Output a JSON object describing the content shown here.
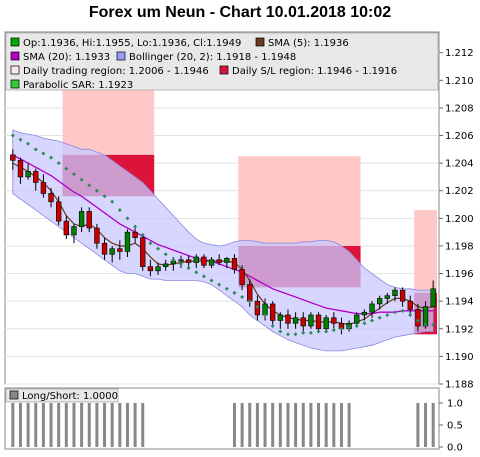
{
  "title": "Forex um Neun - Chart 10.01.2018 10:02",
  "legend": {
    "ohlc": "Op:1.1936, Hi:1.1955, Lo:1.1936, Cl:1.1949",
    "sma5": "SMA (5): 1.1936",
    "sma20": "SMA (20): 1.1933",
    "bollinger": "Bollinger (20, 2): 1.1918 - 1.1948",
    "trading_region": "Daily trading region: 1.2006 - 1.1946",
    "sl_region": "Daily S/L region: 1.1946 - 1.1916",
    "sar": "Parabolic SAR: 1.1923",
    "longshort": "Long/Short: 1.0000"
  },
  "colors": {
    "ohlc_icon": "#00aa00",
    "sma5": "#6b3a1e",
    "sma20": "#b000c8",
    "bollinger_fill": "#c8c8ff",
    "trading_region": "#ffc8c8",
    "sl_region": "#dc143c",
    "sar": "#2e8b57",
    "candle_up": "#008000",
    "candle_down": "#c80000",
    "longshort": "#888888"
  },
  "chart_data": {
    "type": "candlestick",
    "title": "Forex um Neun - Chart 10.01.2018 10:02",
    "ylim": [
      1.188,
      1.2135
    ],
    "y_ticks": [
      "1.188",
      "1.190",
      "1.192",
      "1.194",
      "1.196",
      "1.198",
      "1.200",
      "1.202",
      "1.204",
      "1.206",
      "1.208",
      "1.210",
      "1.212"
    ],
    "candles": [
      {
        "o": 1.2046,
        "h": 1.205,
        "l": 1.2035,
        "c": 1.2042
      },
      {
        "o": 1.2042,
        "h": 1.2044,
        "l": 1.2025,
        "c": 1.203
      },
      {
        "o": 1.203,
        "h": 1.204,
        "l": 1.2028,
        "c": 1.2034
      },
      {
        "o": 1.2034,
        "h": 1.2036,
        "l": 1.202,
        "c": 1.2026
      },
      {
        "o": 1.2026,
        "h": 1.2032,
        "l": 1.2015,
        "c": 1.2018
      },
      {
        "o": 1.2018,
        "h": 1.2022,
        "l": 1.2008,
        "c": 1.2012
      },
      {
        "o": 1.2012,
        "h": 1.2016,
        "l": 1.1995,
        "c": 1.1998
      },
      {
        "o": 1.1998,
        "h": 1.2002,
        "l": 1.1985,
        "c": 1.1988
      },
      {
        "o": 1.1988,
        "h": 1.1996,
        "l": 1.1982,
        "c": 1.1994
      },
      {
        "o": 1.1994,
        "h": 1.2008,
        "l": 1.199,
        "c": 1.2005
      },
      {
        "o": 1.2005,
        "h": 1.2008,
        "l": 1.199,
        "c": 1.1993
      },
      {
        "o": 1.1993,
        "h": 1.1996,
        "l": 1.1978,
        "c": 1.1982
      },
      {
        "o": 1.1982,
        "h": 1.1986,
        "l": 1.197,
        "c": 1.1974
      },
      {
        "o": 1.1974,
        "h": 1.198,
        "l": 1.1968,
        "c": 1.1978
      },
      {
        "o": 1.1978,
        "h": 1.1984,
        "l": 1.197,
        "c": 1.1976
      },
      {
        "o": 1.1976,
        "h": 1.1992,
        "l": 1.1972,
        "c": 1.199
      },
      {
        "o": 1.199,
        "h": 1.1994,
        "l": 1.1982,
        "c": 1.1986
      },
      {
        "o": 1.1986,
        "h": 1.1988,
        "l": 1.1962,
        "c": 1.1965
      },
      {
        "o": 1.1965,
        "h": 1.197,
        "l": 1.1958,
        "c": 1.1962
      },
      {
        "o": 1.1962,
        "h": 1.1968,
        "l": 1.1959,
        "c": 1.1965
      },
      {
        "o": 1.1965,
        "h": 1.197,
        "l": 1.1962,
        "c": 1.1967
      },
      {
        "o": 1.1967,
        "h": 1.1972,
        "l": 1.1962,
        "c": 1.1969
      },
      {
        "o": 1.1969,
        "h": 1.1973,
        "l": 1.1964,
        "c": 1.197
      },
      {
        "o": 1.197,
        "h": 1.1973,
        "l": 1.1965,
        "c": 1.1968
      },
      {
        "o": 1.1968,
        "h": 1.1974,
        "l": 1.1964,
        "c": 1.1972
      },
      {
        "o": 1.1972,
        "h": 1.1974,
        "l": 1.1964,
        "c": 1.1966
      },
      {
        "o": 1.1966,
        "h": 1.1972,
        "l": 1.1964,
        "c": 1.197
      },
      {
        "o": 1.197,
        "h": 1.1974,
        "l": 1.1966,
        "c": 1.1968
      },
      {
        "o": 1.1968,
        "h": 1.1972,
        "l": 1.1964,
        "c": 1.1971
      },
      {
        "o": 1.1971,
        "h": 1.1974,
        "l": 1.196,
        "c": 1.1963
      },
      {
        "o": 1.1963,
        "h": 1.1966,
        "l": 1.1948,
        "c": 1.1952
      },
      {
        "o": 1.1952,
        "h": 1.1956,
        "l": 1.1936,
        "c": 1.194
      },
      {
        "o": 1.194,
        "h": 1.1944,
        "l": 1.1926,
        "c": 1.193
      },
      {
        "o": 1.193,
        "h": 1.1942,
        "l": 1.1926,
        "c": 1.1938
      },
      {
        "o": 1.1938,
        "h": 1.194,
        "l": 1.1922,
        "c": 1.1926
      },
      {
        "o": 1.1926,
        "h": 1.1932,
        "l": 1.192,
        "c": 1.193
      },
      {
        "o": 1.193,
        "h": 1.1934,
        "l": 1.192,
        "c": 1.1924
      },
      {
        "o": 1.1924,
        "h": 1.1932,
        "l": 1.192,
        "c": 1.1928
      },
      {
        "o": 1.1928,
        "h": 1.1932,
        "l": 1.1918,
        "c": 1.1922
      },
      {
        "o": 1.1922,
        "h": 1.1932,
        "l": 1.192,
        "c": 1.193
      },
      {
        "o": 1.193,
        "h": 1.1932,
        "l": 1.1918,
        "c": 1.192
      },
      {
        "o": 1.192,
        "h": 1.193,
        "l": 1.1918,
        "c": 1.1928
      },
      {
        "o": 1.1928,
        "h": 1.1932,
        "l": 1.192,
        "c": 1.1924
      },
      {
        "o": 1.1924,
        "h": 1.1928,
        "l": 1.1916,
        "c": 1.192
      },
      {
        "o": 1.192,
        "h": 1.1926,
        "l": 1.1918,
        "c": 1.1924
      },
      {
        "o": 1.1924,
        "h": 1.1932,
        "l": 1.1922,
        "c": 1.193
      },
      {
        "o": 1.193,
        "h": 1.1934,
        "l": 1.1926,
        "c": 1.1932
      },
      {
        "o": 1.1932,
        "h": 1.194,
        "l": 1.1928,
        "c": 1.1938
      },
      {
        "o": 1.1938,
        "h": 1.1944,
        "l": 1.1934,
        "c": 1.1942
      },
      {
        "o": 1.1942,
        "h": 1.1946,
        "l": 1.1938,
        "c": 1.1944
      },
      {
        "o": 1.1944,
        "h": 1.195,
        "l": 1.194,
        "c": 1.1948
      },
      {
        "o": 1.1948,
        "h": 1.195,
        "l": 1.1936,
        "c": 1.194
      },
      {
        "o": 1.194,
        "h": 1.1944,
        "l": 1.193,
        "c": 1.1934
      },
      {
        "o": 1.1934,
        "h": 1.1938,
        "l": 1.1918,
        "c": 1.1922
      },
      {
        "o": 1.1922,
        "h": 1.194,
        "l": 1.192,
        "c": 1.1936
      },
      {
        "o": 1.1936,
        "h": 1.1955,
        "l": 1.1936,
        "c": 1.1949
      }
    ],
    "sma5": [
      1.204,
      1.2037,
      1.2034,
      1.203,
      1.2026,
      1.202,
      1.2012,
      1.2002,
      1.1996,
      1.1994,
      1.1996,
      1.1992,
      1.1986,
      1.1982,
      1.198,
      1.198,
      1.1982,
      1.1978,
      1.1972,
      1.1967,
      1.1966,
      1.1967,
      1.1968,
      1.1969,
      1.1969,
      1.1969,
      1.1969,
      1.1969,
      1.1969,
      1.1968,
      1.1963,
      1.1955,
      1.1945,
      1.1938,
      1.1933,
      1.193,
      1.1928,
      1.1927,
      1.1926,
      1.1926,
      1.1925,
      1.1925,
      1.1925,
      1.1924,
      1.1923,
      1.1925,
      1.1927,
      1.1931,
      1.1935,
      1.1939,
      1.1942,
      1.1942,
      1.194,
      1.1936,
      1.1935,
      1.1936
    ],
    "sma20": [
      1.2046,
      1.2043,
      1.204,
      1.2037,
      1.2034,
      1.2031,
      1.2027,
      1.2023,
      1.2019,
      1.2016,
      1.2012,
      1.2008,
      1.2004,
      1.2,
      1.1996,
      1.1993,
      1.199,
      1.1987,
      1.1984,
      1.1981,
      1.1979,
      1.1977,
      1.1975,
      1.1973,
      1.1971,
      1.197,
      1.1969,
      1.1967,
      1.1965,
      1.1963,
      1.1961,
      1.1958,
      1.1955,
      1.1952,
      1.1949,
      1.1947,
      1.1945,
      1.1943,
      1.1941,
      1.1939,
      1.1937,
      1.1935,
      1.1934,
      1.1933,
      1.1932,
      1.1931,
      1.1931,
      1.1931,
      1.1932,
      1.1932,
      1.1932,
      1.1933,
      1.1933,
      1.1933,
      1.1933,
      1.1933
    ],
    "bb_upper": [
      1.2064,
      1.2062,
      1.2061,
      1.206,
      1.2058,
      1.2057,
      1.2056,
      1.2054,
      1.2052,
      1.205,
      1.205,
      1.2048,
      1.2046,
      1.2042,
      1.2038,
      1.2034,
      1.203,
      1.2026,
      1.202,
      1.2014,
      1.2008,
      1.2002,
      1.1996,
      1.199,
      1.1985,
      1.1982,
      1.1981,
      1.198,
      1.1981,
      1.1983,
      1.1984,
      1.1984,
      1.1983,
      1.1982,
      1.1982,
      1.1982,
      1.1982,
      1.1982,
      1.1983,
      1.1983,
      1.1984,
      1.1984,
      1.1983,
      1.198,
      1.1976,
      1.197,
      1.1964,
      1.196,
      1.1956,
      1.1952,
      1.195,
      1.1949,
      1.1949,
      1.1948,
      1.1948,
      1.1948
    ],
    "bb_lower": [
      1.2018,
      1.2014,
      1.201,
      1.2006,
      1.2002,
      1.1998,
      1.1994,
      1.199,
      1.1986,
      1.1982,
      1.1978,
      1.1974,
      1.197,
      1.1966,
      1.1962,
      1.196,
      1.196,
      1.1958,
      1.1956,
      1.1956,
      1.1955,
      1.1955,
      1.1955,
      1.1955,
      1.1955,
      1.1954,
      1.1952,
      1.1948,
      1.1944,
      1.194,
      1.1936,
      1.193,
      1.1926,
      1.1922,
      1.1918,
      1.1915,
      1.1912,
      1.191,
      1.1908,
      1.1906,
      1.1905,
      1.1904,
      1.1904,
      1.1904,
      1.1905,
      1.1906,
      1.1907,
      1.1908,
      1.191,
      1.1912,
      1.1914,
      1.1915,
      1.1916,
      1.1917,
      1.1918,
      1.1918
    ],
    "sar": [
      1.206,
      1.2057,
      1.2054,
      1.205,
      1.2047,
      1.2044,
      1.204,
      1.2036,
      1.2032,
      1.2028,
      1.2024,
      1.202,
      1.2016,
      1.2012,
      1.2006,
      1.2,
      1.1994,
      1.1988,
      1.1982,
      1.1978,
      1.1974,
      1.197,
      1.1967,
      1.1964,
      1.1961,
      1.1958,
      1.1955,
      1.1952,
      1.1949,
      1.1946,
      1.1943,
      1.194,
      1.1936,
      1.193,
      1.1922,
      1.1918,
      1.1916,
      1.1916,
      1.1917,
      1.1917,
      1.1918,
      1.1918,
      1.1919,
      1.192,
      1.1921,
      1.1922,
      1.1924,
      1.1926,
      1.1928,
      1.193,
      1.1932,
      1.1933,
      1.193,
      1.1926,
      1.1923,
      1.1923
    ],
    "trading_regions": [
      {
        "from": 7,
        "to": 18,
        "high": 1.212,
        "low": 1.2046
      },
      {
        "from": 30,
        "to": 45,
        "high": 1.2045,
        "low": 1.198
      },
      {
        "from": 53,
        "to": 55,
        "high": 1.2006,
        "low": 1.1946
      }
    ],
    "sl_regions": [
      {
        "from": 7,
        "to": 18,
        "high": 1.2046,
        "low": 1.2016
      },
      {
        "from": 30,
        "to": 45,
        "high": 1.198,
        "low": 1.195
      },
      {
        "from": 53,
        "to": 55,
        "high": 1.1946,
        "low": 1.1916
      }
    ],
    "longshort": {
      "ylim": [
        0,
        1
      ],
      "y_ticks": [
        "0.0",
        "0.5",
        "1.0"
      ],
      "values": [
        1,
        1,
        1,
        1,
        1,
        1,
        1,
        1,
        1,
        1,
        1,
        1,
        1,
        1,
        1,
        1,
        1,
        1,
        0,
        0,
        0,
        0,
        0,
        0,
        0,
        0,
        0,
        0,
        0,
        1,
        1,
        1,
        1,
        1,
        1,
        1,
        1,
        1,
        1,
        1,
        1,
        1,
        1,
        1,
        1,
        0,
        0,
        0,
        0,
        0,
        0,
        0,
        0,
        1,
        1,
        1
      ]
    }
  }
}
